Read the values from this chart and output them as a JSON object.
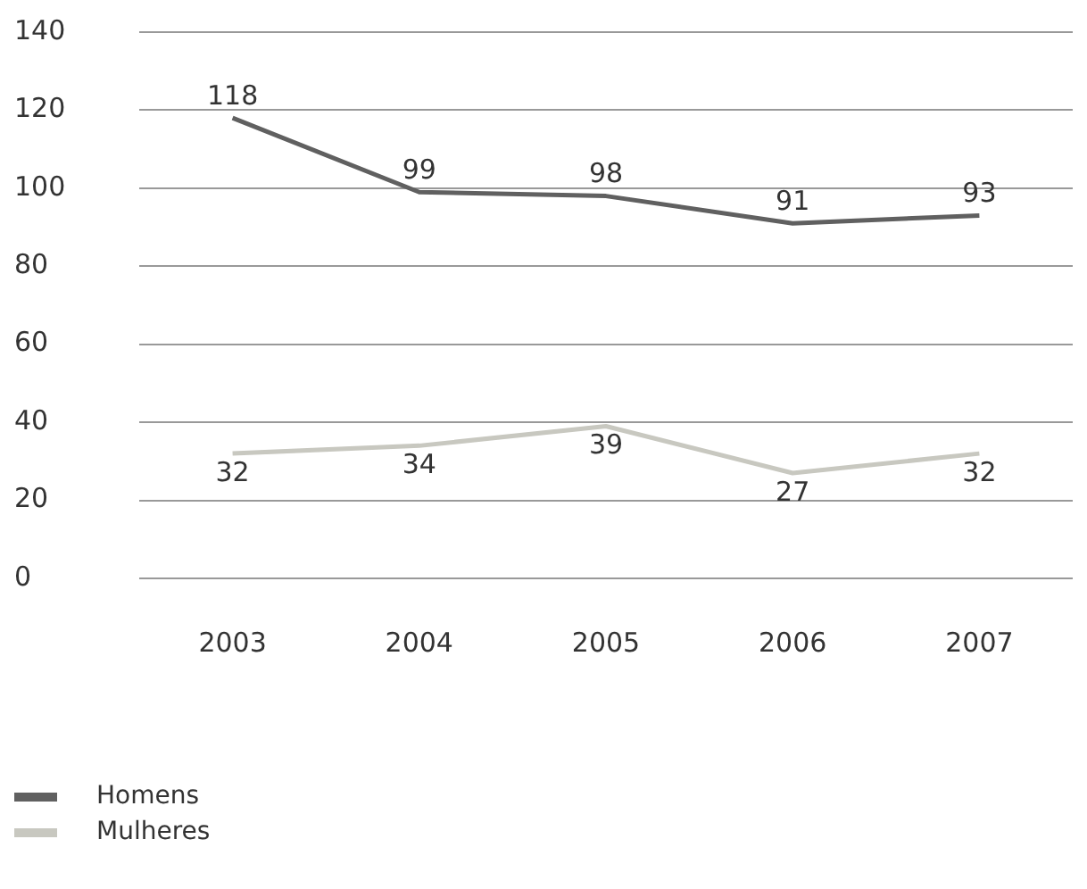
{
  "chart_data": {
    "type": "line",
    "categories": [
      "2003",
      "2004",
      "2005",
      "2006",
      "2007"
    ],
    "series": [
      {
        "name": "Homens",
        "color": "#606060",
        "values": [
          118,
          99,
          98,
          91,
          93
        ]
      },
      {
        "name": "Mulheres",
        "color": "#c8c8c0",
        "values": [
          32,
          34,
          39,
          27,
          32
        ]
      }
    ],
    "ylim": [
      0,
      140
    ],
    "yticks": [
      0,
      20,
      40,
      60,
      80,
      100,
      120,
      140
    ],
    "grid": "y",
    "legend": "bottom left",
    "data_labels": true,
    "marker": "none",
    "line_style": "solid"
  }
}
